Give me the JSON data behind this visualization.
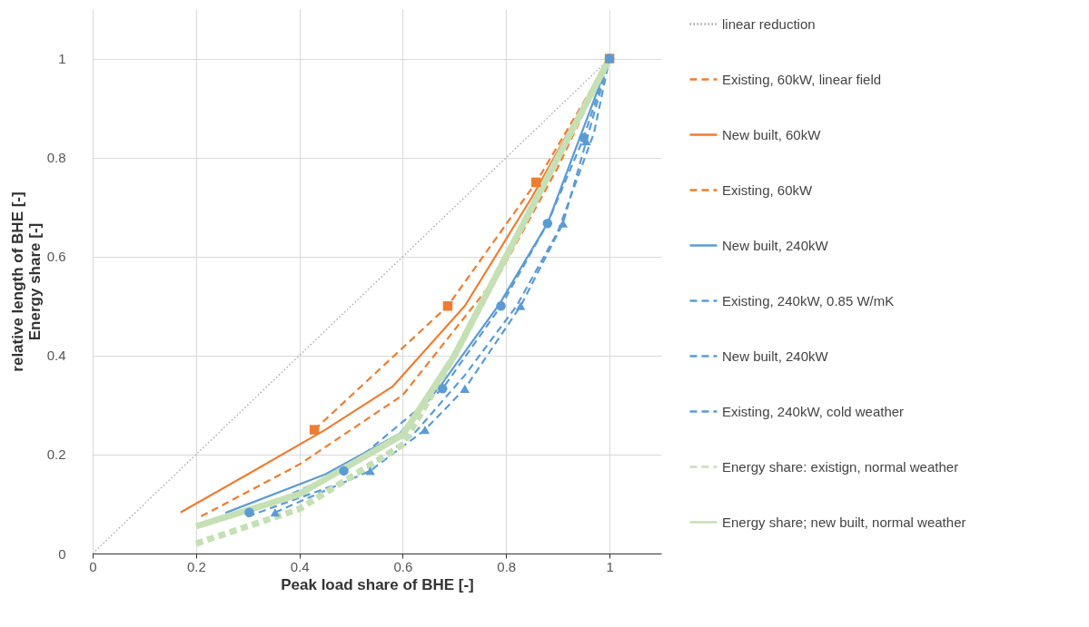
{
  "chart_data": {
    "type": "line",
    "xlabel": "Peak load share of BHE [-]",
    "ylabel": "relative length of BHE [-]\nEnergy share [-]",
    "xlim": [
      0,
      1.1
    ],
    "ylim": [
      0,
      1.1
    ],
    "xticks": [
      0,
      0.2,
      0.4,
      0.6,
      0.8,
      1
    ],
    "yticks": [
      0,
      0.2,
      0.4,
      0.6,
      0.8,
      1
    ],
    "grid": true,
    "legend": "right",
    "series": [
      {
        "name": "linear reduction",
        "color": "#a6a6a6",
        "line_style": "dotted",
        "marker": "none",
        "x": [
          0,
          1
        ],
        "values": [
          0,
          1
        ]
      },
      {
        "name": "Existing, 60kW, linear field",
        "color": "#ed7d31",
        "line_style": "dashed",
        "marker": "square",
        "x": [
          0.429,
          0.687,
          0.858,
          1
        ],
        "values": [
          0.25,
          0.5,
          0.75,
          1
        ]
      },
      {
        "name": "New built, 60kW",
        "color": "#ed7d31",
        "line_style": "solid",
        "marker": "none",
        "x": [
          0.17,
          0.3,
          0.45,
          0.58,
          0.72,
          0.85,
          1
        ],
        "values": [
          0.083,
          0.16,
          0.25,
          0.337,
          0.5,
          0.72,
          1
        ]
      },
      {
        "name": "Existing, 60kW",
        "color": "#ed7d31",
        "line_style": "dashed",
        "marker": "none",
        "x": [
          0.21,
          0.4,
          0.6,
          0.79,
          0.9,
          1
        ],
        "values": [
          0.075,
          0.18,
          0.32,
          0.57,
          0.78,
          1
        ]
      },
      {
        "name": "New built, 240kW",
        "color": "#5b9bd5",
        "line_style": "solid",
        "marker": "none",
        "x": [
          0.257,
          0.45,
          0.594,
          0.673,
          0.787,
          0.881,
          1
        ],
        "values": [
          0.082,
          0.16,
          0.242,
          0.339,
          0.504,
          0.669,
          1
        ]
      },
      {
        "name": "Existing, 240kW, 0.85 W/mK",
        "color": "#5b9bd5",
        "line_style": "dashed",
        "marker": "circle",
        "x": [
          0.303,
          0.486,
          0.677,
          0.79,
          0.88,
          0.95,
          1
        ],
        "values": [
          0.083,
          0.167,
          0.333,
          0.5,
          0.667,
          0.84,
          1
        ]
      },
      {
        "name": "New built, 240kW",
        "color": "#5b9bd5",
        "line_style": "dashed",
        "marker": "none",
        "x": [
          0.3,
          0.5,
          0.62,
          0.72,
          0.82,
          0.9,
          0.97,
          1
        ],
        "values": [
          0.075,
          0.15,
          0.24,
          0.36,
          0.5,
          0.65,
          0.85,
          1
        ]
      },
      {
        "name": "Existing, 240kW, cold weather",
        "color": "#5b9bd5",
        "line_style": "dashed",
        "marker": "triangle",
        "x": [
          0.353,
          0.537,
          0.643,
          0.72,
          0.828,
          0.91,
          0.955,
          1
        ],
        "values": [
          0.083,
          0.167,
          0.25,
          0.333,
          0.5,
          0.667,
          0.833,
          1
        ]
      },
      {
        "name": "Energy share: existign, normal weather",
        "color": "#c5e0b4",
        "line_style": "dashed",
        "marker": "none",
        "x": [
          0.2,
          0.4,
          0.6,
          0.7,
          0.8,
          0.9,
          1
        ],
        "values": [
          0.02,
          0.09,
          0.22,
          0.4,
          0.6,
          0.8,
          1
        ]
      },
      {
        "name": "Energy share; new built, normal weather",
        "color": "#c5e0b4",
        "line_style": "solid",
        "marker": "none",
        "x": [
          0.2,
          0.4,
          0.6,
          0.7,
          0.8,
          0.9,
          1
        ],
        "values": [
          0.055,
          0.12,
          0.24,
          0.4,
          0.6,
          0.8,
          1
        ]
      }
    ]
  }
}
